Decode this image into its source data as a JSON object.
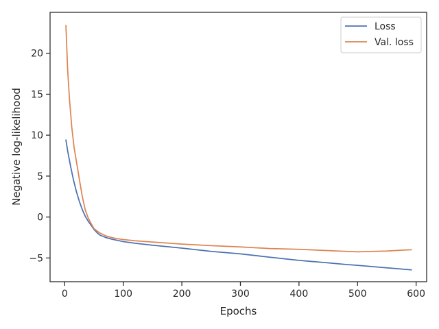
{
  "chart_data": {
    "type": "line",
    "xlabel": "Epochs",
    "ylabel": "Negative log-likelihood",
    "xlim": [
      -25,
      618
    ],
    "ylim": [
      -7.9,
      25
    ],
    "xticks": [
      0,
      100,
      200,
      300,
      400,
      500,
      600
    ],
    "yticks": [
      -5,
      0,
      5,
      10,
      15,
      20
    ],
    "ytick_labels": [
      "−5",
      "0",
      "5",
      "10",
      "15",
      "20"
    ],
    "legend_position": "top-right",
    "grid": false,
    "series": [
      {
        "name": "Loss",
        "color": "#4c72b0",
        "x": [
          2,
          5,
          10,
          15,
          20,
          25,
          30,
          35,
          40,
          45,
          50,
          55,
          60,
          70,
          80,
          90,
          100,
          120,
          150,
          200,
          250,
          300,
          350,
          400,
          450,
          480,
          500,
          550,
          575,
          592
        ],
        "y": [
          9.4,
          8.1,
          6.2,
          4.5,
          3.1,
          1.9,
          0.9,
          0.1,
          -0.5,
          -1.0,
          -1.5,
          -1.9,
          -2.2,
          -2.5,
          -2.7,
          -2.85,
          -3.0,
          -3.2,
          -3.45,
          -3.8,
          -4.2,
          -4.5,
          -4.9,
          -5.3,
          -5.6,
          -5.8,
          -5.9,
          -6.2,
          -6.35,
          -6.45
        ]
      },
      {
        "name": "Val. loss",
        "color": "#dd8452",
        "x": [
          2,
          5,
          8,
          12,
          16,
          20,
          25,
          30,
          35,
          40,
          45,
          50,
          55,
          60,
          70,
          80,
          90,
          100,
          120,
          150,
          200,
          250,
          300,
          350,
          400,
          450,
          480,
          500,
          550,
          575,
          592
        ],
        "y": [
          23.4,
          18.0,
          14.5,
          11.0,
          8.5,
          6.8,
          4.6,
          2.5,
          0.9,
          -0.1,
          -0.8,
          -1.4,
          -1.7,
          -1.95,
          -2.3,
          -2.5,
          -2.65,
          -2.75,
          -2.9,
          -3.05,
          -3.3,
          -3.5,
          -3.65,
          -3.85,
          -3.95,
          -4.1,
          -4.2,
          -4.25,
          -4.15,
          -4.05,
          -4.0
        ]
      }
    ]
  }
}
